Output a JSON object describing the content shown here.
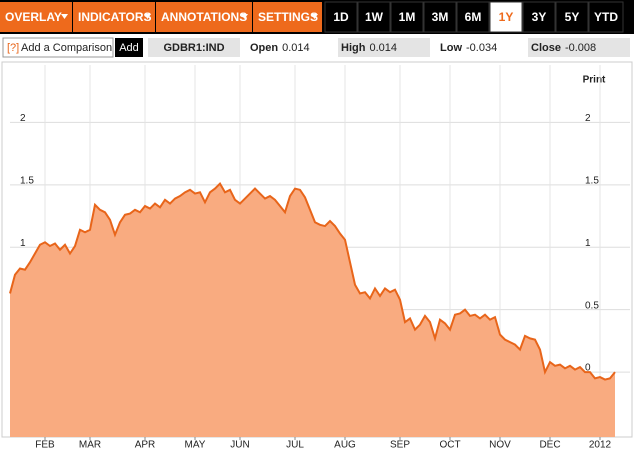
{
  "toolbar": {
    "menus": [
      "OVERLAY",
      "INDICATORS",
      "ANNOTATIONS",
      "SETTINGS"
    ],
    "ranges": [
      "1D",
      "1W",
      "1M",
      "3M",
      "6M",
      "1Y",
      "3Y",
      "5Y",
      "YTD"
    ],
    "active_range": "1Y"
  },
  "comparison": {
    "help": "[?]",
    "placeholder": "Add a Comparison",
    "button": "Add"
  },
  "ticker": "GDBR1:IND",
  "quote": [
    {
      "label": "Open",
      "value": 0.014
    },
    {
      "label": "High",
      "value": 0.014
    },
    {
      "label": "Low",
      "value": -0.034
    },
    {
      "label": "Close",
      "value": -0.008
    }
  ],
  "print": "Print",
  "chart_data": {
    "type": "area",
    "categories": [
      null,
      null,
      null,
      null,
      null,
      null,
      null,
      "FEB",
      null,
      null,
      null,
      null,
      null,
      null,
      null,
      null,
      "MAR",
      null,
      null,
      null,
      null,
      null,
      null,
      null,
      null,
      null,
      null,
      "APR",
      null,
      null,
      null,
      null,
      null,
      null,
      null,
      null,
      null,
      "MAY",
      null,
      null,
      null,
      null,
      null,
      null,
      null,
      null,
      "JUN",
      null,
      null,
      null,
      null,
      null,
      null,
      null,
      null,
      null,
      null,
      "JUL",
      null,
      null,
      null,
      null,
      null,
      null,
      null,
      null,
      null,
      "AUG",
      null,
      null,
      null,
      null,
      null,
      null,
      null,
      null,
      null,
      null,
      "SEP",
      null,
      null,
      null,
      null,
      null,
      null,
      null,
      null,
      null,
      "OCT",
      null,
      null,
      null,
      null,
      null,
      null,
      null,
      null,
      null,
      "NOV",
      null,
      null,
      null,
      null,
      null,
      null,
      null,
      null,
      null,
      "DEC",
      null,
      null,
      null,
      null,
      null,
      null,
      null,
      null,
      null,
      "2012",
      null,
      null,
      null
    ],
    "series": [
      {
        "color": "#e8651a",
        "fill": "#f9ab80",
        "values": [
          0.63,
          0.78,
          0.83,
          0.82,
          0.88,
          0.95,
          1.02,
          1.04,
          1.01,
          1.03,
          0.98,
          1.02,
          0.95,
          1.01,
          1.14,
          1.12,
          1.14,
          1.34,
          1.3,
          1.28,
          1.22,
          1.1,
          1.2,
          1.26,
          1.27,
          1.3,
          1.28,
          1.33,
          1.31,
          1.35,
          1.32,
          1.38,
          1.35,
          1.39,
          1.41,
          1.44,
          1.46,
          1.43,
          1.44,
          1.36,
          1.44,
          1.47,
          1.51,
          1.44,
          1.46,
          1.38,
          1.35,
          1.39,
          1.43,
          1.47,
          1.43,
          1.39,
          1.41,
          1.38,
          1.33,
          1.28,
          1.41,
          1.47,
          1.46,
          1.4,
          1.3,
          1.2,
          1.18,
          1.17,
          1.21,
          1.17,
          1.11,
          1.06,
          0.88,
          0.7,
          0.63,
          0.64,
          0.59,
          0.67,
          0.61,
          0.67,
          0.64,
          0.66,
          0.58,
          0.4,
          0.43,
          0.34,
          0.38,
          0.45,
          0.4,
          0.27,
          0.42,
          0.39,
          0.34,
          0.46,
          0.47,
          0.5,
          0.45,
          0.46,
          0.43,
          0.46,
          0.42,
          0.44,
          0.3,
          0.26,
          0.24,
          0.22,
          0.18,
          0.29,
          0.27,
          0.26,
          0.18,
          0.0,
          0.08,
          0.05,
          0.06,
          0.03,
          0.05,
          0.02,
          0.04,
          0.0,
          0.0,
          -0.05,
          -0.04,
          -0.06,
          -0.05,
          0.0
        ]
      }
    ],
    "ylim": [
      -0.52,
      2.46
    ],
    "yticks": [
      0,
      0.5,
      1,
      1.5,
      2
    ],
    "grid": true
  }
}
